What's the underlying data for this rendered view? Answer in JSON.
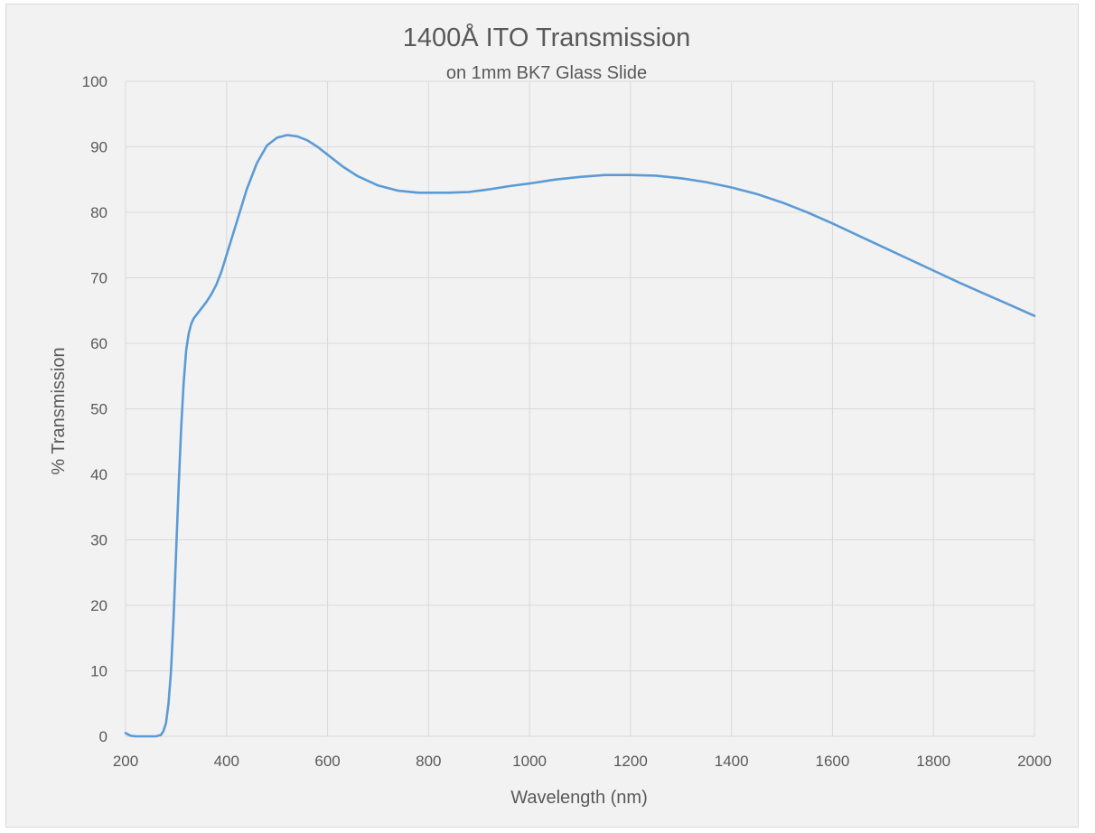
{
  "chart_data": {
    "type": "line",
    "title": "1400Å ITO Transmission",
    "subtitle": "on 1mm BK7 Glass Slide",
    "xlabel": "Wavelength (nm)",
    "ylabel": "% Transmission",
    "xlim": [
      200,
      2000
    ],
    "ylim": [
      0,
      100
    ],
    "x_ticks": [
      200,
      400,
      600,
      800,
      1000,
      1200,
      1400,
      1600,
      1800,
      2000
    ],
    "y_ticks": [
      0,
      10,
      20,
      30,
      40,
      50,
      60,
      70,
      80,
      90,
      100
    ],
    "grid": true,
    "legend": "none",
    "series_color": "#5b9bd5",
    "series": [
      {
        "x": [
          200,
          210,
          220,
          240,
          260,
          270,
          275,
          280,
          285,
          290,
          295,
          300,
          305,
          310,
          315,
          320,
          325,
          330,
          335,
          340,
          345,
          350,
          360,
          370,
          380,
          390,
          400,
          420,
          440,
          460,
          480,
          500,
          520,
          540,
          560,
          580,
          600,
          630,
          660,
          700,
          740,
          780,
          800,
          840,
          880,
          900,
          920,
          960,
          1000,
          1050,
          1100,
          1150,
          1200,
          1250,
          1300,
          1350,
          1400,
          1450,
          1500,
          1550,
          1600,
          1650,
          1700,
          1750,
          1800,
          1850,
          1900,
          1950,
          2000
        ],
        "y": [
          0.5,
          0.1,
          0,
          0,
          0,
          0.2,
          0.8,
          2,
          5,
          10,
          18,
          28,
          38,
          47,
          54,
          59,
          61.5,
          63,
          63.8,
          64.3,
          64.8,
          65.3,
          66.3,
          67.5,
          69,
          71,
          73.5,
          78.5,
          83.5,
          87.5,
          90.2,
          91.4,
          91.8,
          91.6,
          91,
          90,
          88.8,
          87,
          85.5,
          84.1,
          83.3,
          83,
          83,
          83,
          83.1,
          83.3,
          83.5,
          84,
          84.4,
          85,
          85.4,
          85.7,
          85.7,
          85.6,
          85.2,
          84.6,
          83.8,
          82.8,
          81.5,
          80,
          78.3,
          76.5,
          74.7,
          72.9,
          71.1,
          69.3,
          67.6,
          65.9,
          64.2
        ]
      }
    ]
  }
}
